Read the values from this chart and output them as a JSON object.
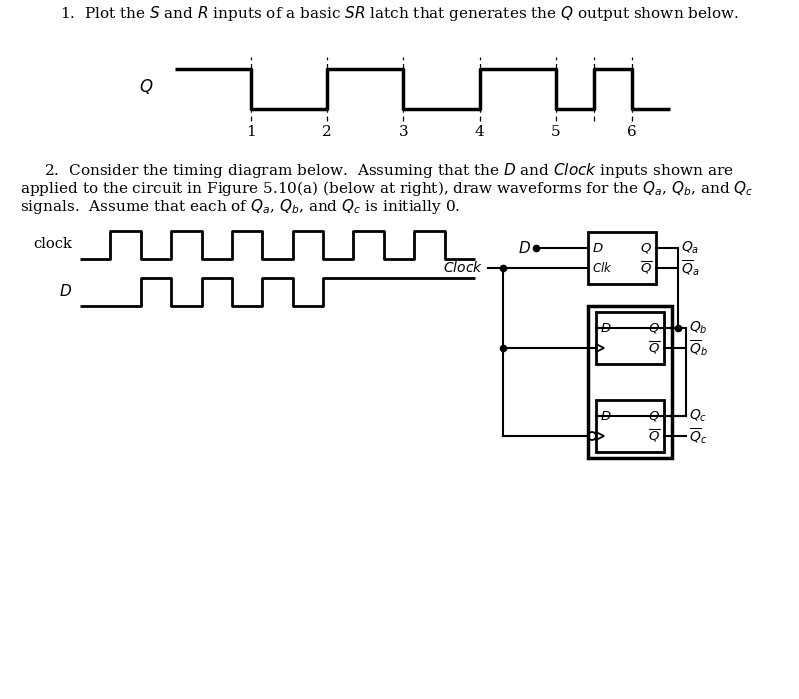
{
  "bg_color": "#ffffff",
  "Q_signal_x": [
    0,
    1,
    1,
    2,
    2,
    3,
    3,
    4,
    4,
    5,
    5,
    5.5,
    5.5,
    6,
    6,
    6.5
  ],
  "Q_signal_y": [
    1,
    1,
    0,
    0,
    1,
    1,
    0,
    0,
    1,
    1,
    0,
    0,
    1,
    1,
    0,
    0
  ],
  "Q_dashed_x": [
    1,
    2,
    3,
    4,
    5,
    5.5,
    6
  ],
  "clock_signal_x": [
    0,
    0.5,
    0.5,
    1,
    1,
    1.5,
    1.5,
    2,
    2,
    2.5,
    2.5,
    3,
    3,
    3.5,
    3.5,
    4,
    4,
    4.5,
    4.5,
    5,
    5,
    5.5,
    5.5,
    6,
    6,
    6.5
  ],
  "clock_signal_y": [
    0,
    0,
    1,
    1,
    0,
    0,
    1,
    1,
    0,
    0,
    1,
    1,
    0,
    0,
    1,
    1,
    0,
    0,
    1,
    1,
    0,
    0,
    1,
    1,
    0,
    0
  ],
  "D_signal_x": [
    0,
    1,
    1,
    1.5,
    1.5,
    2,
    2,
    2.5,
    2.5,
    3,
    3,
    3.5,
    3.5,
    4,
    4,
    6.5
  ],
  "D_signal_y": [
    0,
    0,
    1,
    1,
    0,
    0,
    1,
    1,
    0,
    0,
    1,
    1,
    0,
    0,
    1,
    1
  ]
}
